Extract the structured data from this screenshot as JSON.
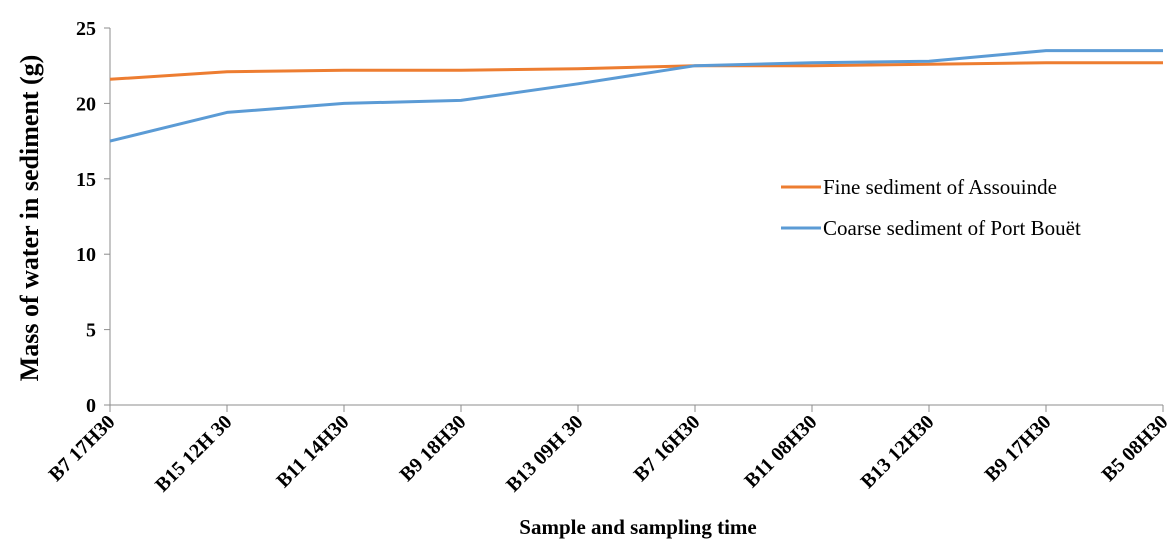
{
  "chart_data": {
    "type": "line",
    "xlabel": "Sample and sampling time",
    "ylabel": "Mass of water  in sediment (g)",
    "ylim": [
      0,
      25
    ],
    "yticks": [
      "0",
      "5",
      "10",
      "15",
      "20",
      "25"
    ],
    "categories": [
      "B7 17H30",
      "B15 12H 30",
      "B11 14H30",
      "B9 18H30",
      "B13 09H 30",
      "B7 16H30",
      "B11 08H30",
      "B13 12H30",
      "B9 17H30",
      "B5 08H30"
    ],
    "series": [
      {
        "name": "Fine sediment of Assouinde",
        "color": "#ED7D31",
        "values": [
          21.6,
          22.1,
          22.2,
          22.2,
          22.3,
          22.5,
          22.5,
          22.6,
          22.7,
          22.7
        ]
      },
      {
        "name": "Coarse sediment of Port Bouët",
        "color": "#5B9BD5",
        "values": [
          17.5,
          19.4,
          20.0,
          20.2,
          21.3,
          22.5,
          22.7,
          22.8,
          23.5,
          23.5
        ]
      }
    ],
    "grid": false,
    "legend_position": "right"
  }
}
